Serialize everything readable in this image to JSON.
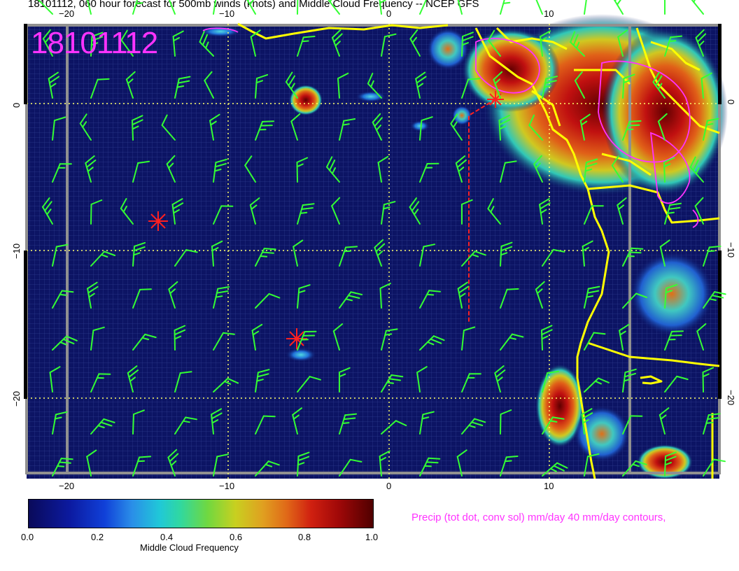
{
  "title": "18101112, 060 hour forecast for 500mb winds (knots) and Middle Cloud Frequency -- NCEP GFS",
  "stamp": "18101112",
  "lon_ticks": [
    "−20",
    "−10",
    "0",
    "10"
  ],
  "lat_ticks": [
    "0",
    "−10",
    "−20"
  ],
  "colorbar": {
    "title": "Middle Cloud Frequency",
    "labels": [
      "0.0",
      "0.2",
      "0.4",
      "0.6",
      "0.8",
      "1.0"
    ]
  },
  "precip_note": "Precip (tot dot, conv sol) mm/day 40 mm/day contours,",
  "colors": {
    "ocean": "#0c1464",
    "barbs": "#33ff33",
    "coast": "#ffff00",
    "markers": "#ff2020",
    "precip": "#ff33ff",
    "grid": "#ffff66"
  }
}
